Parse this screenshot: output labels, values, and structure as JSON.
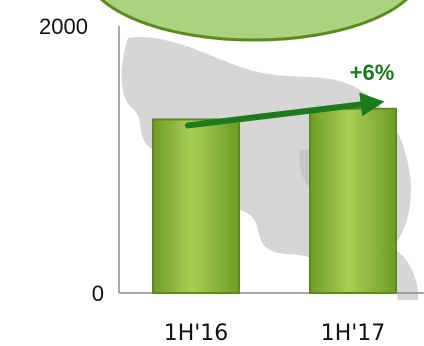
{
  "chart_data": {
    "type": "bar",
    "categories": [
      "1H'16",
      "1H'17"
    ],
    "values": [
      1300,
      1380
    ],
    "ylim": [
      0,
      2000
    ],
    "yticks": [
      "0",
      "2000"
    ],
    "annotation": {
      "label": "+6%",
      "from": "1H'16",
      "to": "1H'17"
    },
    "grid": false,
    "colors": {
      "bar_fill": "#8dbb3c",
      "bar_edge": "#5e8a1d",
      "bar_highlight": "#b6da6a",
      "arrow": "#1d7a1d",
      "badge_fill": "#a9d37e",
      "badge_edge": "#5e8a1d",
      "map_shape": "#c9c9c9"
    }
  }
}
